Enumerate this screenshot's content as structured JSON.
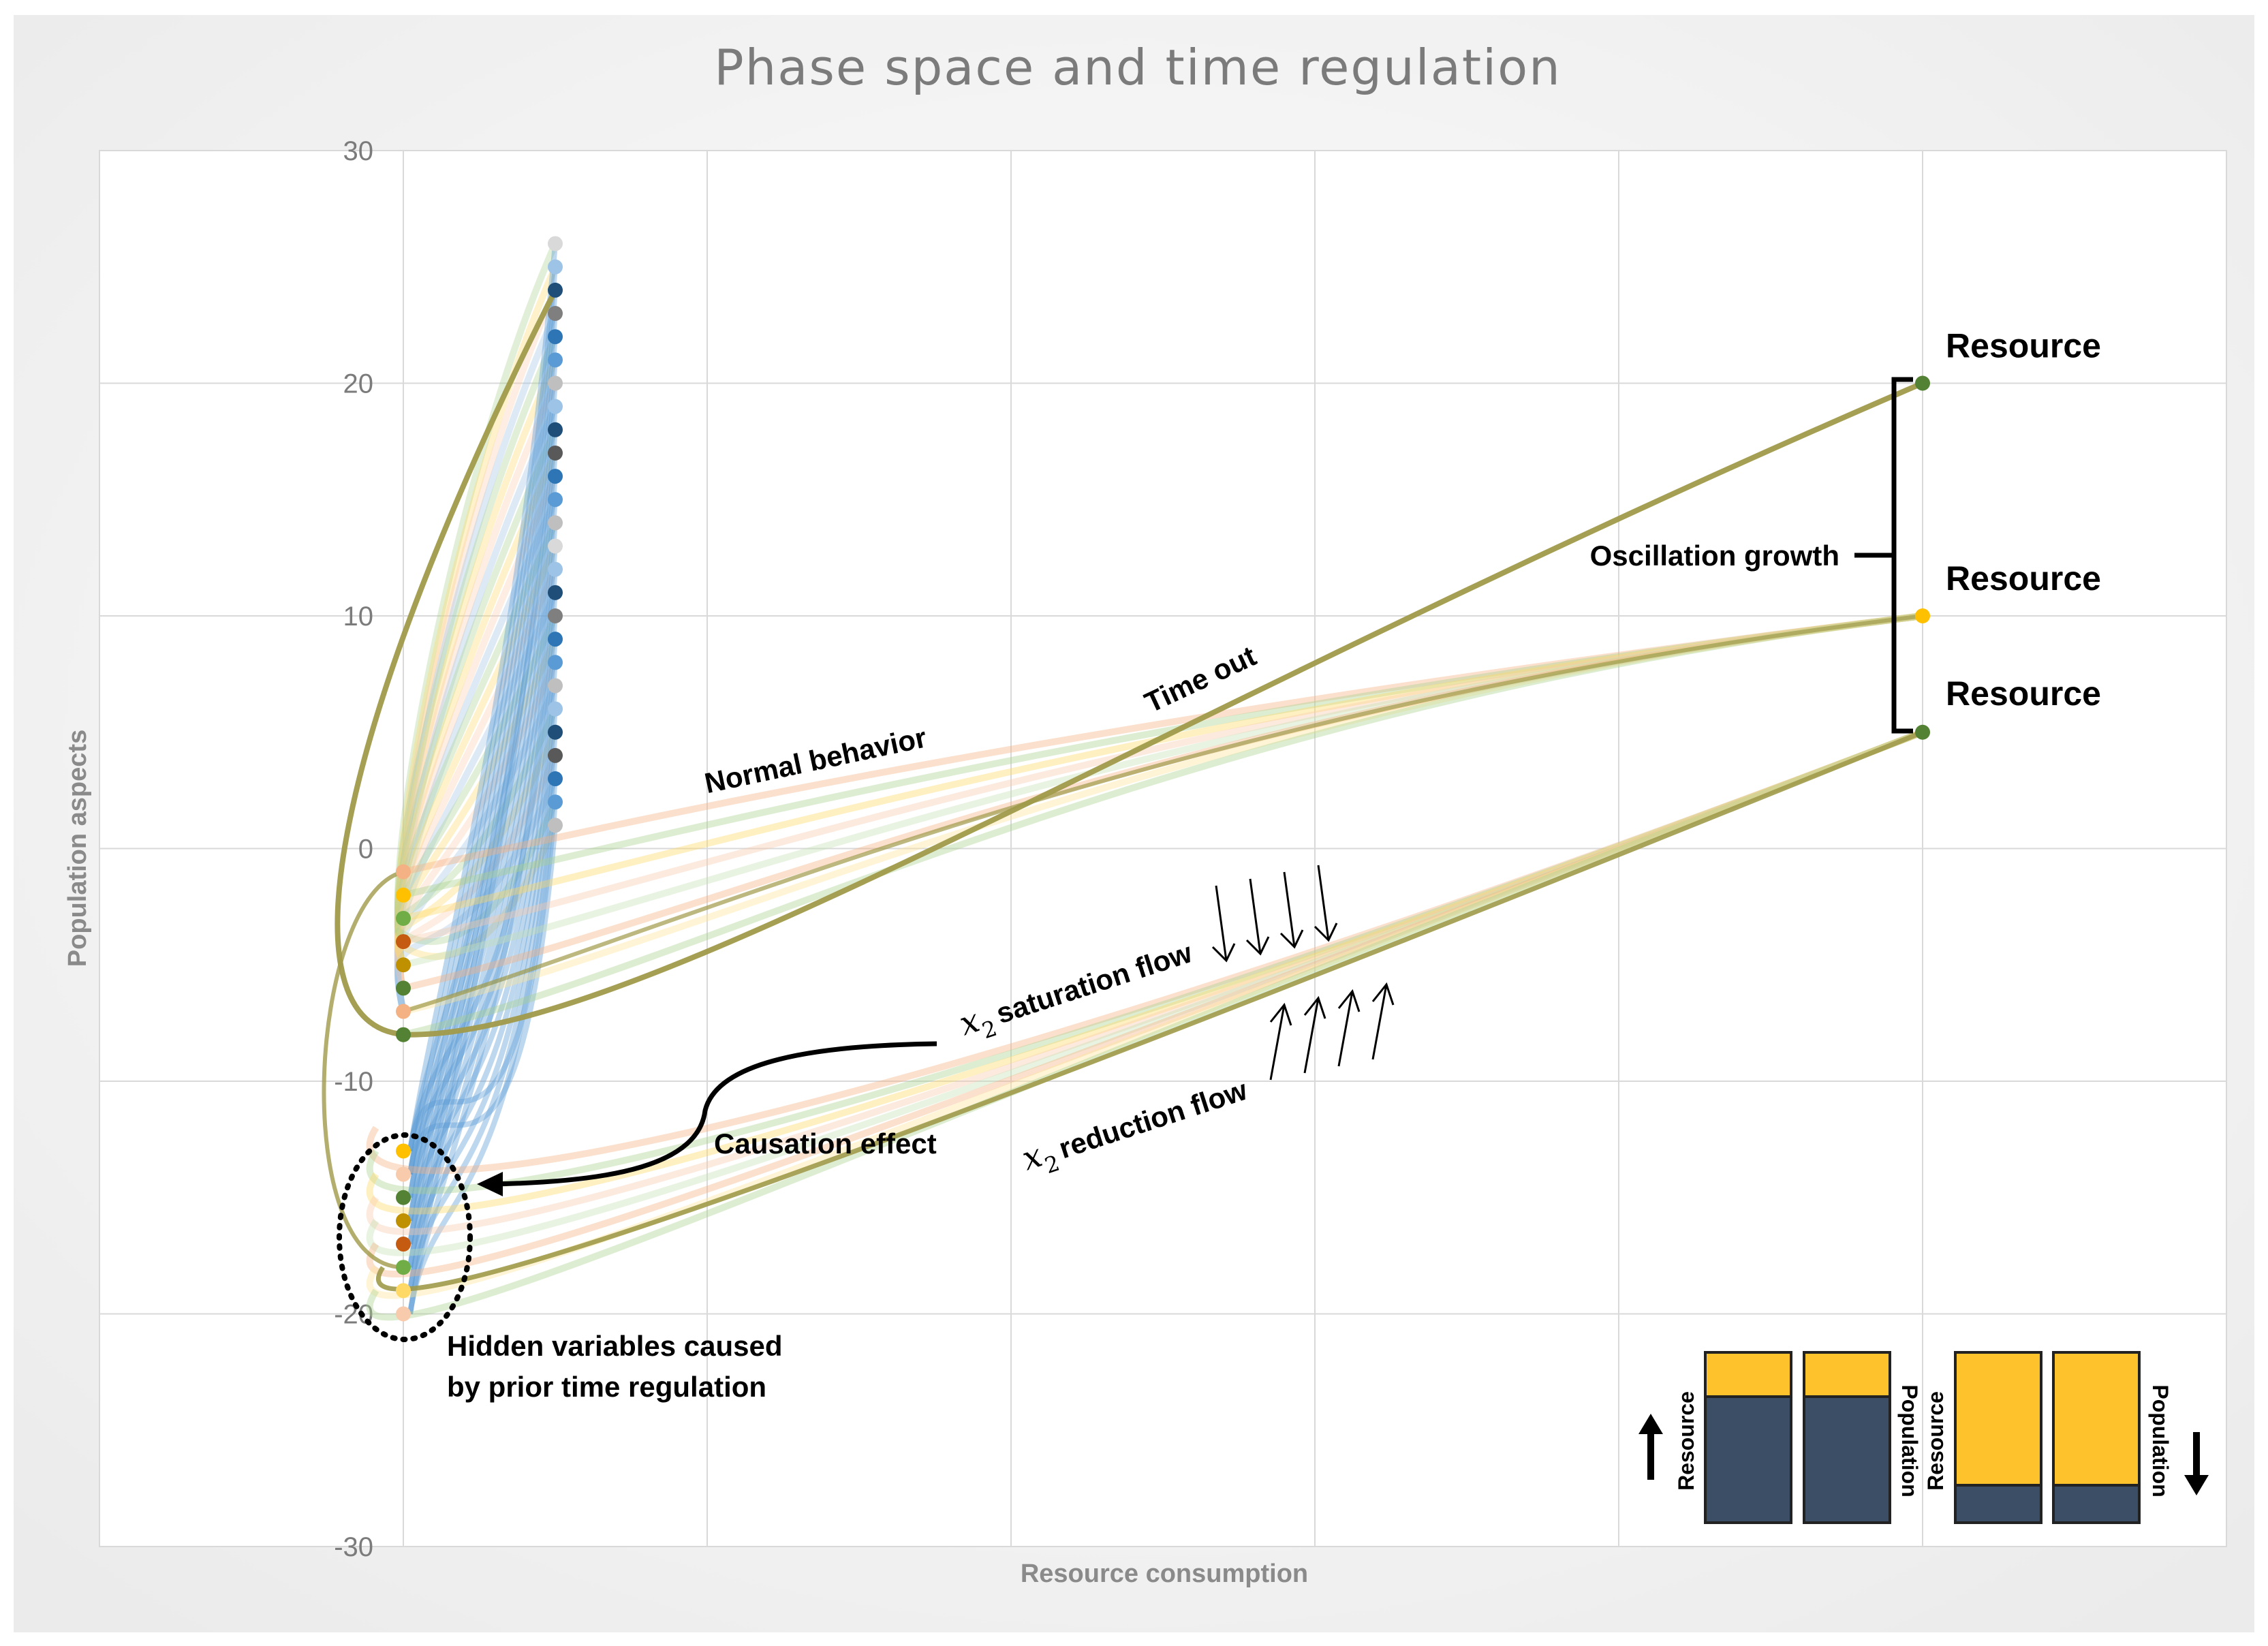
{
  "chart_data": {
    "type": "line",
    "title": "Phase space and time regulation",
    "xlabel": "Resource consumption",
    "ylabel": "Population aspects",
    "ylim": [
      -30,
      30
    ],
    "yticks": [
      "30",
      "20",
      "10",
      "0",
      "-10",
      "-20",
      "-30"
    ],
    "xlim": [
      0,
      7
    ],
    "grid": true,
    "y_top_points": [
      26,
      25,
      24,
      23,
      22,
      21,
      20,
      19,
      18,
      17,
      16,
      15,
      14,
      13,
      12,
      11,
      10,
      9,
      8,
      7,
      6,
      5,
      4,
      3,
      2,
      1
    ],
    "y_mid_points": [
      -1,
      -2,
      -3,
      -4,
      -5,
      -6,
      -7,
      -8
    ],
    "y_low_points": [
      -13,
      -14,
      -15,
      -16,
      -17,
      -18,
      -19,
      -20
    ],
    "resource_points": [
      {
        "x": 6,
        "y": 20,
        "label": "Resource"
      },
      {
        "x": 6,
        "y": 10,
        "label": "Resource"
      },
      {
        "x": 6,
        "y": 5,
        "label": "Resource"
      }
    ],
    "annotations": {
      "normal": "Normal behavior",
      "timeout": "Time out",
      "oscillation": "Oscillation growth",
      "x_var": "x",
      "x_sub": "2",
      "saturation": "saturation flow",
      "reduction": "reduction flow",
      "causation": "Causation effect",
      "hidden_line1": "Hidden variables caused",
      "hidden_line2": "by prior time regulation"
    },
    "inset": {
      "left_label_resource": "Resource",
      "left_label_population": "Population",
      "right_label_resource": "Resource",
      "right_label_population": "Population",
      "left_top_fraction": 0.25,
      "right_top_fraction": 0.76
    }
  },
  "colors": {
    "gold": "#fec22c",
    "navy": "#3b4e66",
    "olive": "#a09a4a",
    "blue_line": "#5b9bd5"
  }
}
